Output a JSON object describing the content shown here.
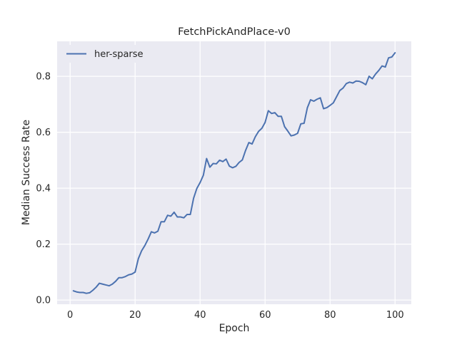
{
  "chart_data": {
    "type": "line",
    "title": "FetchPickAndPlace-v0",
    "xlabel": "Epoch",
    "ylabel": "Median Success Rate",
    "xlim": [
      -4,
      105
    ],
    "ylim": [
      -0.015,
      0.925
    ],
    "xticks": [
      0,
      20,
      40,
      60,
      80,
      100
    ],
    "yticks": [
      0.0,
      0.2,
      0.4,
      0.6,
      0.8
    ],
    "xtick_labels": [
      "0",
      "20",
      "40",
      "60",
      "80",
      "100"
    ],
    "ytick_labels": [
      "0.0",
      "0.2",
      "0.4",
      "0.6",
      "0.8"
    ],
    "grid": true,
    "legend_position": "top-left",
    "colors": {
      "background": "#EAEAF2",
      "grid": "#FFFFFF",
      "line": "#4C72B0"
    },
    "series": [
      {
        "name": "her-sparse",
        "x": [
          1,
          2,
          3,
          4,
          5,
          6,
          7,
          8,
          9,
          10,
          11,
          12,
          13,
          14,
          15,
          16,
          17,
          18,
          19,
          20,
          21,
          22,
          23,
          24,
          25,
          26,
          27,
          28,
          29,
          30,
          31,
          32,
          33,
          34,
          35,
          36,
          37,
          38,
          39,
          40,
          41,
          42,
          43,
          44,
          45,
          46,
          47,
          48,
          49,
          50,
          51,
          52,
          53,
          54,
          55,
          56,
          57,
          58,
          59,
          60,
          61,
          62,
          63,
          64,
          65,
          66,
          67,
          68,
          69,
          70,
          71,
          72,
          73,
          74,
          75,
          76,
          77,
          78,
          79,
          80,
          81,
          82,
          83,
          84,
          85,
          86,
          87,
          88,
          89,
          90,
          91,
          92,
          93,
          94,
          95,
          96,
          97,
          98,
          99,
          100
        ],
        "values": [
          0.033,
          0.029,
          0.027,
          0.027,
          0.024,
          0.026,
          0.035,
          0.046,
          0.06,
          0.057,
          0.054,
          0.051,
          0.057,
          0.067,
          0.08,
          0.08,
          0.084,
          0.09,
          0.093,
          0.1,
          0.148,
          0.176,
          0.195,
          0.218,
          0.244,
          0.24,
          0.246,
          0.28,
          0.28,
          0.303,
          0.3,
          0.314,
          0.297,
          0.297,
          0.294,
          0.306,
          0.306,
          0.364,
          0.399,
          0.42,
          0.446,
          0.506,
          0.475,
          0.488,
          0.487,
          0.5,
          0.495,
          0.504,
          0.479,
          0.473,
          0.478,
          0.492,
          0.501,
          0.535,
          0.563,
          0.558,
          0.584,
          0.603,
          0.614,
          0.635,
          0.677,
          0.667,
          0.67,
          0.657,
          0.657,
          0.62,
          0.604,
          0.587,
          0.59,
          0.596,
          0.63,
          0.632,
          0.687,
          0.716,
          0.711,
          0.718,
          0.723,
          0.684,
          0.688,
          0.696,
          0.705,
          0.727,
          0.749,
          0.758,
          0.774,
          0.779,
          0.776,
          0.783,
          0.782,
          0.777,
          0.77,
          0.8,
          0.791,
          0.808,
          0.821,
          0.837,
          0.833,
          0.866,
          0.869,
          0.884
        ]
      }
    ]
  }
}
